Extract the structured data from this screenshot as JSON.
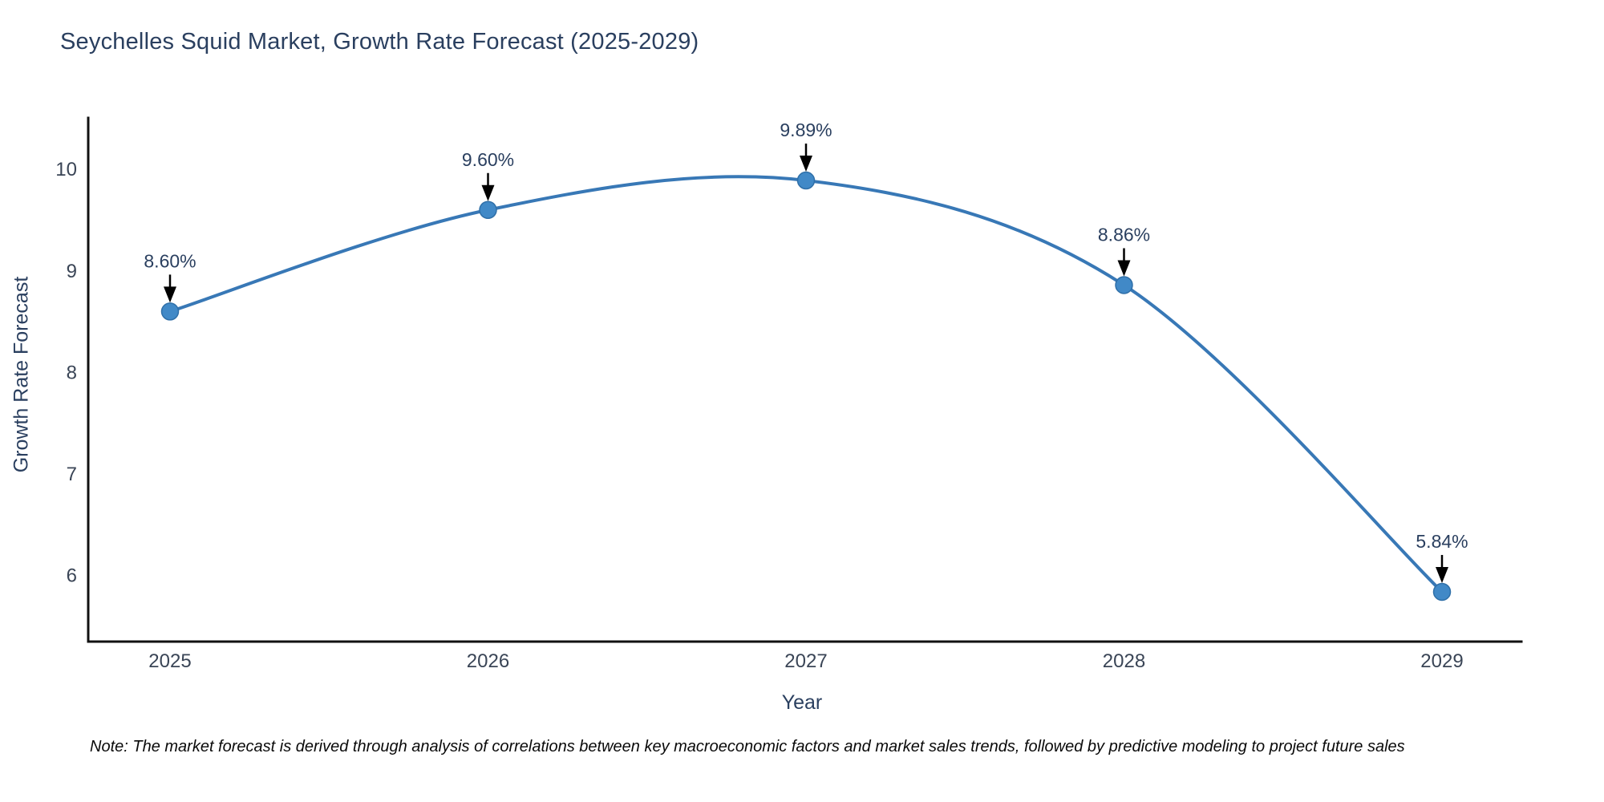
{
  "figure": {
    "note": "Note: The market forecast is derived through analysis of correlations between key macroeconomic factors and market sales trends, followed by predictive modeling to project future sales"
  },
  "chart_data": {
    "type": "line",
    "line_shape": "spline",
    "title": "Seychelles Squid Market, Growth Rate Forecast (2025-2029)",
    "xlabel": "Year",
    "ylabel": "Growth Rate Forecast",
    "categories": [
      "2025",
      "2026",
      "2027",
      "2028",
      "2029"
    ],
    "values": [
      8.6,
      9.6,
      9.89,
      8.86,
      5.84
    ],
    "point_labels": [
      "8.60%",
      "9.60%",
      "9.89%",
      "8.86%",
      "5.84%"
    ],
    "yticks": [
      "10",
      "9",
      "8",
      "7",
      "6"
    ],
    "ytick_values": [
      10,
      9,
      8,
      7,
      6
    ],
    "ylim": [
      5.35,
      10.48
    ],
    "grid": false,
    "legend": "none",
    "colors": {
      "line": "#3878b6",
      "marker_fill": "#4189c7",
      "marker_stroke": "#2f6fa8",
      "axis": "#111111",
      "tick_text": "#3a4556",
      "title_text": "#2a3f5f",
      "annotation_text": "#2a3f5f",
      "arrow": "#000000"
    }
  }
}
